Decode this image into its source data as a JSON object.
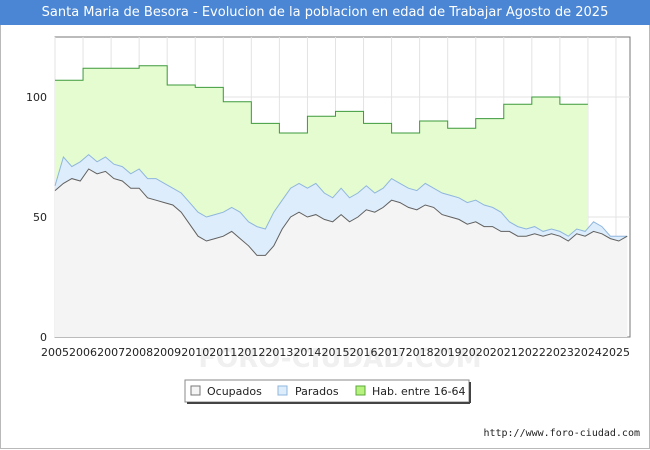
{
  "title": "Santa Maria de Besora - Evolucion de la poblacion en edad de Trabajar Agosto de 2025",
  "source": "http://www.foro-ciudad.com",
  "watermark": "FORO-CIUDAD.COM",
  "colors": {
    "title_bg": "#4a86d4",
    "hab_fill": "#e4fccf",
    "hab_line": "#3d9a3d",
    "parados_fill": "#deedfb",
    "parados_line": "#8fb6dd",
    "ocupados_fill": "#f4f4f4",
    "ocupados_line": "#606060"
  },
  "chart_data": {
    "type": "area",
    "title": "Santa Maria de Besora - Evolucion de la poblacion en edad de Trabajar Agosto de 2025",
    "xlim": [
      2005,
      2025.5
    ],
    "ylim": [
      0,
      125
    ],
    "yticks": [
      0,
      50,
      100
    ],
    "xticks": [
      "2005",
      "2006",
      "2007",
      "2008",
      "2009",
      "2010",
      "2011",
      "2012",
      "2013",
      "2014",
      "2015",
      "2016",
      "2017",
      "2018",
      "2019",
      "2020",
      "2021",
      "2022",
      "2023",
      "2024",
      "2025"
    ],
    "grid": true,
    "legend": [
      "Ocupados",
      "Parados",
      "Hab. entre 16-64"
    ],
    "legend_position": "bottom",
    "series": [
      {
        "name": "Hab. entre 16-64",
        "type": "step",
        "years": [
          2005,
          2006,
          2007,
          2008,
          2009,
          2010,
          2011,
          2012,
          2013,
          2014,
          2015,
          2016,
          2017,
          2018,
          2019,
          2020,
          2021,
          2022,
          2023
        ],
        "values": [
          107,
          112,
          112,
          113,
          105,
          104,
          98,
          89,
          85,
          92,
          94,
          89,
          85,
          90,
          87,
          91,
          97,
          100,
          97
        ]
      },
      {
        "name": "Parados + Ocupados",
        "x": [
          2005.0,
          2005.3,
          2005.6,
          2005.9,
          2006.2,
          2006.5,
          2006.8,
          2007.1,
          2007.4,
          2007.7,
          2008.0,
          2008.3,
          2008.6,
          2008.9,
          2009.2,
          2009.5,
          2009.8,
          2010.1,
          2010.4,
          2010.7,
          2011.0,
          2011.3,
          2011.6,
          2011.9,
          2012.2,
          2012.5,
          2012.8,
          2013.1,
          2013.4,
          2013.7,
          2014.0,
          2014.3,
          2014.6,
          2014.9,
          2015.2,
          2015.5,
          2015.8,
          2016.1,
          2016.4,
          2016.7,
          2017.0,
          2017.3,
          2017.6,
          2017.9,
          2018.2,
          2018.5,
          2018.8,
          2019.1,
          2019.4,
          2019.7,
          2020.0,
          2020.3,
          2020.6,
          2020.9,
          2021.2,
          2021.5,
          2021.8,
          2022.1,
          2022.4,
          2022.7,
          2023.0,
          2023.3,
          2023.6,
          2023.9,
          2024.2,
          2024.5,
          2024.8,
          2025.1,
          2025.4
        ],
        "values": [
          63,
          75,
          71,
          73,
          76,
          73,
          75,
          72,
          71,
          68,
          70,
          66,
          66,
          64,
          62,
          60,
          56,
          52,
          50,
          51,
          52,
          54,
          52,
          48,
          46,
          45,
          52,
          57,
          62,
          64,
          62,
          64,
          60,
          58,
          62,
          58,
          60,
          63,
          60,
          62,
          66,
          64,
          62,
          61,
          64,
          62,
          60,
          59,
          58,
          56,
          57,
          55,
          54,
          52,
          48,
          46,
          45,
          46,
          44,
          45,
          44,
          42,
          45,
          44,
          48,
          46,
          42,
          42,
          42
        ]
      },
      {
        "name": "Ocupados",
        "x": [
          2005.0,
          2005.3,
          2005.6,
          2005.9,
          2006.2,
          2006.5,
          2006.8,
          2007.1,
          2007.4,
          2007.7,
          2008.0,
          2008.3,
          2008.6,
          2008.9,
          2009.2,
          2009.5,
          2009.8,
          2010.1,
          2010.4,
          2010.7,
          2011.0,
          2011.3,
          2011.6,
          2011.9,
          2012.2,
          2012.5,
          2012.8,
          2013.1,
          2013.4,
          2013.7,
          2014.0,
          2014.3,
          2014.6,
          2014.9,
          2015.2,
          2015.5,
          2015.8,
          2016.1,
          2016.4,
          2016.7,
          2017.0,
          2017.3,
          2017.6,
          2017.9,
          2018.2,
          2018.5,
          2018.8,
          2019.1,
          2019.4,
          2019.7,
          2020.0,
          2020.3,
          2020.6,
          2020.9,
          2021.2,
          2021.5,
          2021.8,
          2022.1,
          2022.4,
          2022.7,
          2023.0,
          2023.3,
          2023.6,
          2023.9,
          2024.2,
          2024.5,
          2024.8,
          2025.1,
          2025.4
        ],
        "values": [
          61,
          64,
          66,
          65,
          70,
          68,
          69,
          66,
          65,
          62,
          62,
          58,
          57,
          56,
          55,
          52,
          47,
          42,
          40,
          41,
          42,
          44,
          41,
          38,
          34,
          34,
          38,
          45,
          50,
          52,
          50,
          51,
          49,
          48,
          51,
          48,
          50,
          53,
          52,
          54,
          57,
          56,
          54,
          53,
          55,
          54,
          51,
          50,
          49,
          47,
          48,
          46,
          46,
          44,
          44,
          42,
          42,
          43,
          42,
          43,
          42,
          40,
          43,
          42,
          44,
          43,
          41,
          40,
          42
        ]
      }
    ]
  }
}
